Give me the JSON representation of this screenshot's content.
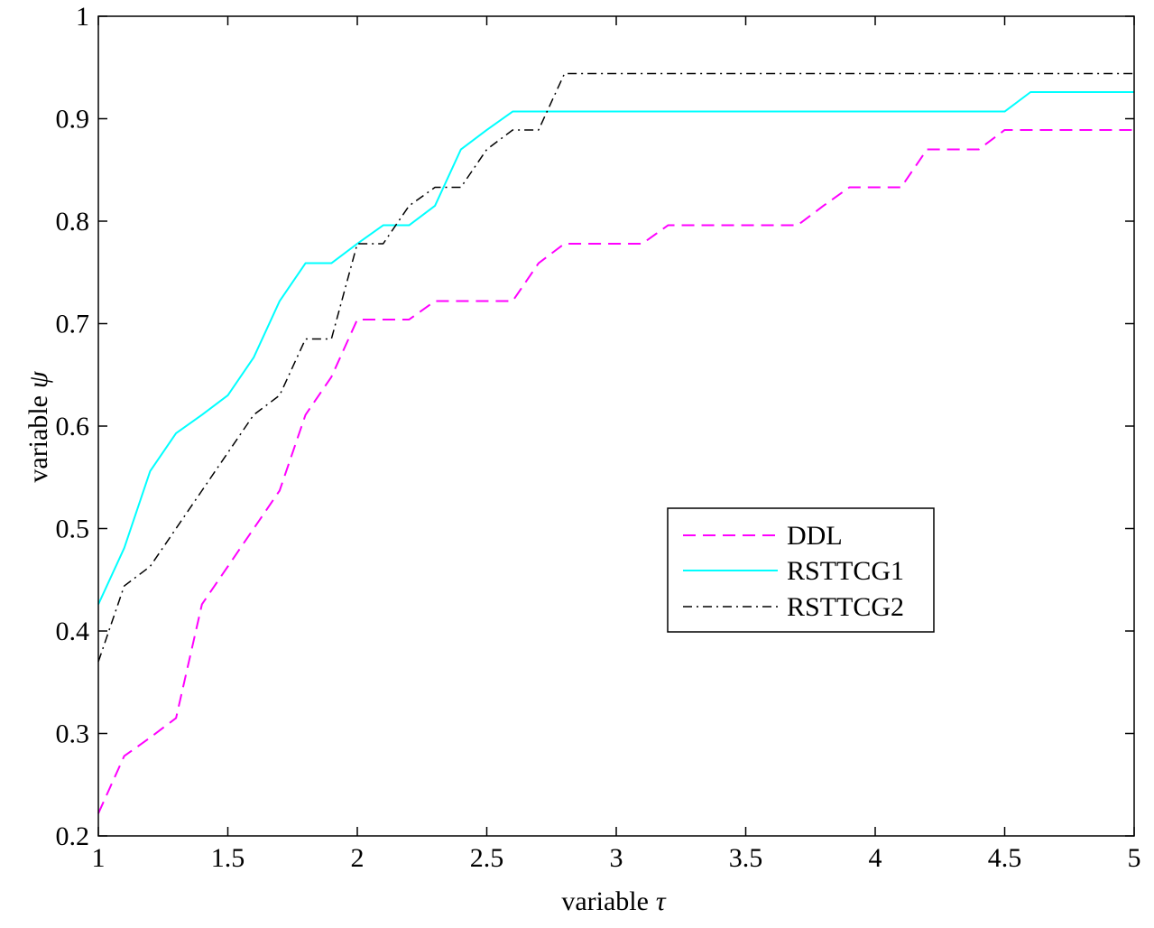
{
  "chart_data": {
    "type": "line",
    "xlabel": "variable",
    "xlabel_symbol": "τ",
    "ylabel": "variable",
    "ylabel_symbol": "ψ",
    "xlim": [
      1,
      5
    ],
    "ylim": [
      0.2,
      1
    ],
    "xticks": [
      1,
      1.5,
      2,
      2.5,
      3,
      3.5,
      4,
      4.5,
      5
    ],
    "xtick_labels": [
      "1",
      "1.5",
      "2",
      "2.5",
      "3",
      "3.5",
      "4",
      "4.5",
      "5"
    ],
    "yticks": [
      0.2,
      0.3,
      0.4,
      0.5,
      0.6,
      0.7,
      0.8,
      0.9,
      1
    ],
    "ytick_labels": [
      "0.2",
      "0.3",
      "0.4",
      "0.5",
      "0.6",
      "0.7",
      "0.8",
      "0.9",
      "1"
    ],
    "grid": false,
    "legend_position": "center-right",
    "series": [
      {
        "name": "DDL",
        "color": "#ff00ff",
        "dash": "dashed",
        "x": [
          1.0,
          1.1,
          1.2,
          1.3,
          1.4,
          1.5,
          1.6,
          1.7,
          1.8,
          1.9,
          2.0,
          2.1,
          2.2,
          2.3,
          2.4,
          2.5,
          2.6,
          2.7,
          2.8,
          2.9,
          3.0,
          3.1,
          3.2,
          3.3,
          3.4,
          3.5,
          3.6,
          3.7,
          3.8,
          3.9,
          4.0,
          4.1,
          4.2,
          4.3,
          4.4,
          4.5,
          4.6,
          4.7,
          4.8,
          4.9,
          5.0
        ],
        "y": [
          0.222,
          0.278,
          0.296,
          0.315,
          0.426,
          0.463,
          0.5,
          0.537,
          0.611,
          0.648,
          0.704,
          0.704,
          0.704,
          0.722,
          0.722,
          0.722,
          0.722,
          0.759,
          0.778,
          0.778,
          0.778,
          0.778,
          0.796,
          0.796,
          0.796,
          0.796,
          0.796,
          0.796,
          0.815,
          0.833,
          0.833,
          0.833,
          0.87,
          0.87,
          0.87,
          0.889,
          0.889,
          0.889,
          0.889,
          0.889,
          0.889
        ]
      },
      {
        "name": "RSTTCG1",
        "color": "#00ffff",
        "dash": "solid",
        "x": [
          1.0,
          1.1,
          1.2,
          1.3,
          1.4,
          1.5,
          1.6,
          1.7,
          1.8,
          1.9,
          2.0,
          2.1,
          2.2,
          2.3,
          2.4,
          2.5,
          2.6,
          2.7,
          2.8,
          2.9,
          3.0,
          3.1,
          3.2,
          3.3,
          3.4,
          3.5,
          3.6,
          3.7,
          3.8,
          3.9,
          4.0,
          4.1,
          4.2,
          4.3,
          4.4,
          4.5,
          4.6,
          4.7,
          4.8,
          4.9,
          5.0
        ],
        "y": [
          0.426,
          0.481,
          0.556,
          0.593,
          0.611,
          0.63,
          0.667,
          0.722,
          0.759,
          0.759,
          0.778,
          0.796,
          0.796,
          0.815,
          0.87,
          0.889,
          0.907,
          0.907,
          0.907,
          0.907,
          0.907,
          0.907,
          0.907,
          0.907,
          0.907,
          0.907,
          0.907,
          0.907,
          0.907,
          0.907,
          0.907,
          0.907,
          0.907,
          0.907,
          0.907,
          0.907,
          0.926,
          0.926,
          0.926,
          0.926,
          0.926
        ]
      },
      {
        "name": "RSTTCG2",
        "color": "#000000",
        "dash": "dashdot",
        "x": [
          1.0,
          1.1,
          1.2,
          1.3,
          1.4,
          1.5,
          1.6,
          1.7,
          1.8,
          1.9,
          2.0,
          2.1,
          2.2,
          2.3,
          2.4,
          2.5,
          2.6,
          2.7,
          2.8,
          2.9,
          3.0,
          3.1,
          3.2,
          3.3,
          3.4,
          3.5,
          3.6,
          3.7,
          3.8,
          3.9,
          4.0,
          4.1,
          4.2,
          4.3,
          4.4,
          4.5,
          4.6,
          4.7,
          4.8,
          4.9,
          5.0
        ],
        "y": [
          0.37,
          0.444,
          0.463,
          0.5,
          0.537,
          0.574,
          0.611,
          0.63,
          0.685,
          0.685,
          0.778,
          0.778,
          0.815,
          0.833,
          0.833,
          0.87,
          0.889,
          0.889,
          0.944,
          0.944,
          0.944,
          0.944,
          0.944,
          0.944,
          0.944,
          0.944,
          0.944,
          0.944,
          0.944,
          0.944,
          0.944,
          0.944,
          0.944,
          0.944,
          0.944,
          0.944,
          0.944,
          0.944,
          0.944,
          0.944,
          0.944
        ]
      }
    ]
  }
}
